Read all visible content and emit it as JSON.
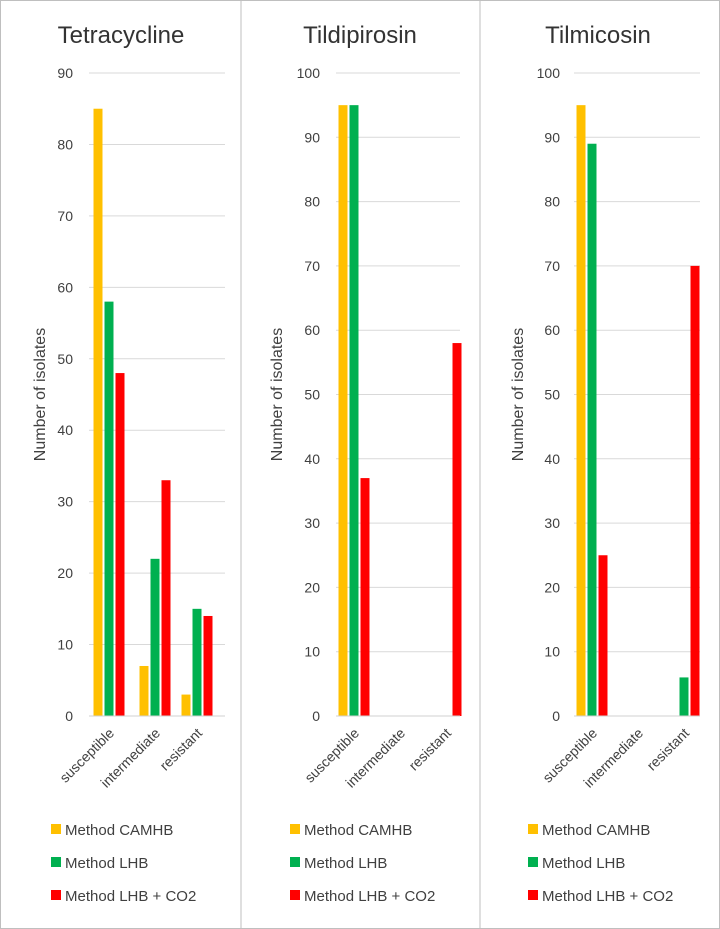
{
  "chart_data": [
    {
      "type": "bar",
      "title": "Tetracycline",
      "ylabel": "Number of isolates",
      "xlabel": "",
      "ylim": [
        0,
        90
      ],
      "yticks": [
        0,
        10,
        20,
        30,
        40,
        50,
        60,
        70,
        80,
        90
      ],
      "categories": [
        "susceptible",
        "intermediate",
        "resistant"
      ],
      "series": [
        {
          "name": "Method CAMHB",
          "values": [
            85,
            7,
            3
          ]
        },
        {
          "name": "Method LHB",
          "values": [
            58,
            22,
            15
          ]
        },
        {
          "name": "Method LHB + CO2",
          "values": [
            48,
            33,
            14
          ]
        }
      ],
      "legend": "bottom",
      "grid": true
    },
    {
      "type": "bar",
      "title": "Tildipirosin",
      "ylabel": "Number of isolates",
      "xlabel": "",
      "ylim": [
        0,
        100
      ],
      "yticks": [
        0,
        10,
        20,
        30,
        40,
        50,
        60,
        70,
        80,
        90,
        100
      ],
      "categories": [
        "susceptible",
        "intermediate",
        "resistant"
      ],
      "series": [
        {
          "name": "Method CAMHB",
          "values": [
            95,
            0,
            0
          ]
        },
        {
          "name": "Method LHB",
          "values": [
            95,
            0,
            0
          ]
        },
        {
          "name": "Method LHB + CO2",
          "values": [
            37,
            0,
            58
          ]
        }
      ],
      "legend": "bottom",
      "grid": true
    },
    {
      "type": "bar",
      "title": "Tilmicosin",
      "ylabel": "Number of isolates",
      "xlabel": "",
      "ylim": [
        0,
        100
      ],
      "yticks": [
        0,
        10,
        20,
        30,
        40,
        50,
        60,
        70,
        80,
        90,
        100
      ],
      "categories": [
        "susceptible",
        "intermediate",
        "resistant"
      ],
      "series": [
        {
          "name": "Method CAMHB",
          "values": [
            95,
            0,
            0
          ]
        },
        {
          "name": "Method LHB",
          "values": [
            89,
            0,
            6
          ]
        },
        {
          "name": "Method LHB + CO2",
          "values": [
            25,
            0,
            70
          ]
        }
      ],
      "legend": "bottom",
      "grid": true
    }
  ],
  "colors": {
    "series": [
      "#FFC000",
      "#00B050",
      "#FF0000"
    ],
    "grid": "#D9D9D9",
    "border": "#BFBFBF"
  }
}
